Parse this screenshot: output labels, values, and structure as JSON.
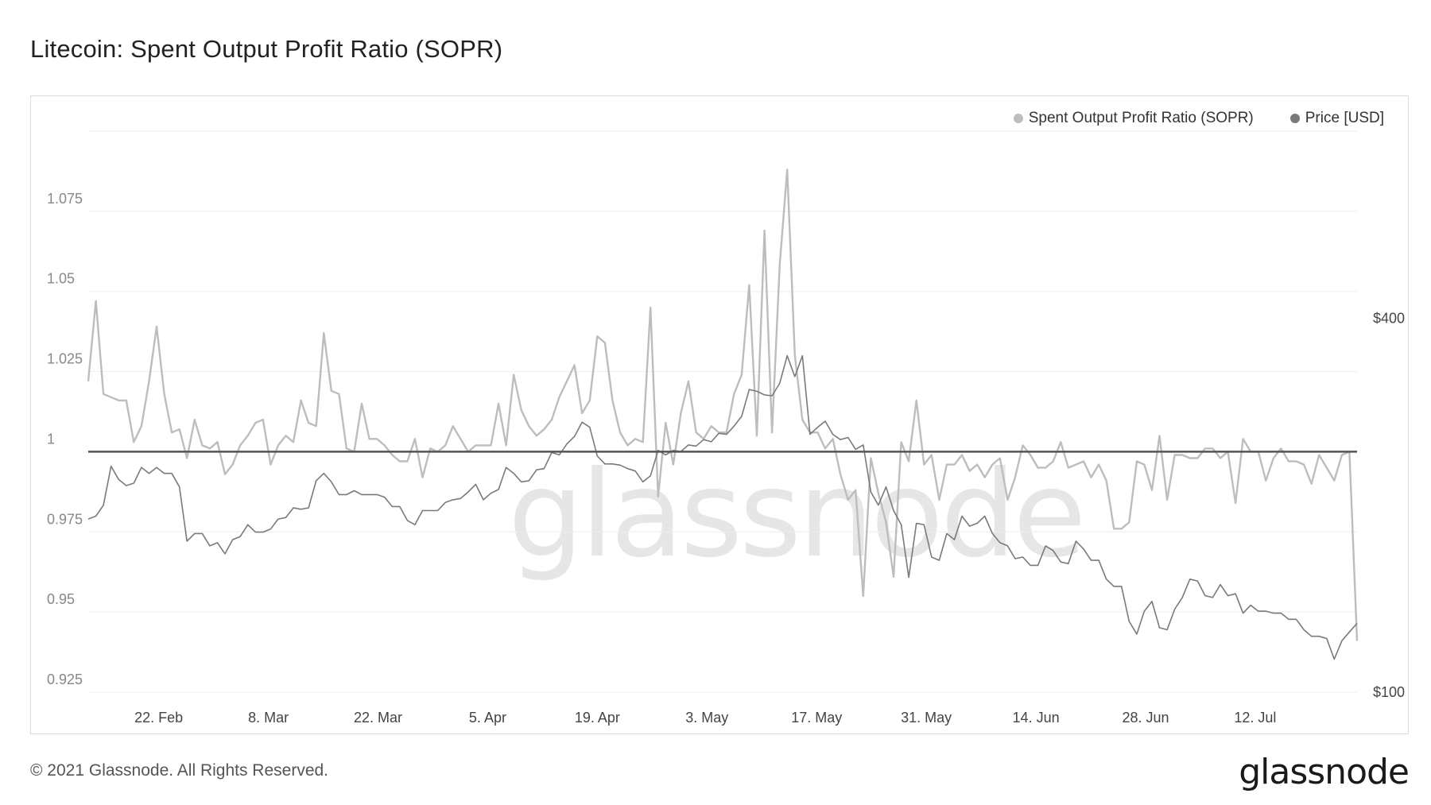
{
  "title": "Litecoin: Spent Output Profit Ratio (SOPR)",
  "footer": {
    "copyright": "© 2021 Glassnode. All Rights Reserved.",
    "logo": "glassnode"
  },
  "watermark": "glassnode",
  "colors": {
    "sopr": "#bdbdbd",
    "price": "#7a7a7a",
    "baseline": "#555555",
    "grid": "#eeeeee"
  },
  "chart_data": {
    "type": "line",
    "title": "Litecoin: Spent Output Profit Ratio (SOPR)",
    "x_start": "2021-02-13",
    "x_end": "2021-07-25",
    "x_ticks": [
      "22. Feb",
      "8. Mar",
      "22. Mar",
      "5. Apr",
      "19. Apr",
      "3. May",
      "17. May",
      "31. May",
      "14. Jun",
      "28. Jun",
      "12. Jul"
    ],
    "y_left": {
      "ticks": [
        "0.925",
        "0.95",
        "0.975",
        "1",
        "1.025",
        "1.05",
        "1.075"
      ],
      "range": [
        0.925,
        1.1
      ]
    },
    "y_right": {
      "ticks": [
        "$100",
        "$400"
      ],
      "scale": "log",
      "range": [
        100,
        800
      ]
    },
    "baseline": 1,
    "legend": {
      "position": "top-right"
    },
    "grid": true,
    "series": [
      {
        "name": "Spent Output Profit Ratio (SOPR)",
        "axis": "left",
        "values": [
          1.022,
          1.047,
          1.018,
          1.017,
          1.016,
          1.016,
          1.003,
          1.008,
          1.022,
          1.039,
          1.018,
          1.006,
          1.007,
          0.998,
          1.01,
          1.002,
          1.001,
          1.003,
          0.993,
          0.996,
          1.002,
          1.005,
          1.009,
          1.01,
          0.996,
          1.002,
          1.005,
          1.003,
          1.016,
          1.009,
          1.008,
          1.037,
          1.019,
          1.018,
          1.001,
          1.0,
          1.015,
          1.004,
          1.004,
          1.002,
          0.999,
          0.997,
          0.997,
          1.004,
          0.992,
          1.001,
          1.0,
          1.002,
          1.008,
          1.004,
          1.0,
          1.002,
          1.002,
          1.002,
          1.015,
          1.002,
          1.024,
          1.013,
          1.008,
          1.005,
          1.007,
          1.01,
          1.017,
          1.022,
          1.027,
          1.012,
          1.016,
          1.036,
          1.034,
          1.016,
          1.006,
          1.002,
          1.004,
          1.003,
          1.045,
          0.986,
          1.009,
          0.996,
          1.012,
          1.022,
          1.006,
          1.004,
          1.008,
          1.006,
          1.006,
          1.018,
          1.024,
          1.052,
          1.005,
          1.069,
          1.006,
          1.058,
          1.088,
          1.03,
          1.01,
          1.006,
          1.006,
          1.001,
          1.004,
          0.993,
          0.985,
          0.988,
          0.955,
          0.998,
          0.987,
          0.978,
          0.961,
          1.003,
          0.997,
          1.016,
          0.996,
          0.999,
          0.985,
          0.996,
          0.996,
          0.999,
          0.994,
          0.996,
          0.992,
          0.996,
          0.998,
          0.985,
          0.992,
          1.002,
          0.999,
          0.995,
          0.995,
          0.997,
          1.003,
          0.995,
          0.996,
          0.997,
          0.992,
          0.996,
          0.991,
          0.976,
          0.976,
          0.978,
          0.997,
          0.996,
          0.988,
          1.005,
          0.985,
          0.999,
          0.999,
          0.998,
          0.998,
          1.001,
          1.001,
          0.998,
          1.0,
          0.984,
          1.004,
          1.0,
          1.0,
          0.991,
          0.998,
          1.001,
          0.997,
          0.997,
          0.996,
          0.99,
          0.999,
          0.995,
          0.991,
          0.999,
          1.0,
          0.941
        ]
      },
      {
        "name": "Price [USD]",
        "axis": "right",
        "values": [
          190,
          192,
          200,
          231,
          220,
          215,
          217,
          230,
          225,
          230,
          225,
          225,
          214,
          175,
          180,
          180,
          172,
          174,
          167,
          176,
          178,
          186,
          181,
          181,
          183,
          190,
          191,
          198,
          197,
          198,
          219,
          225,
          218,
          208,
          208,
          211,
          208,
          208,
          208,
          206,
          199,
          199,
          189,
          186,
          196,
          196,
          196,
          202,
          204,
          205,
          210,
          216,
          204,
          209,
          212,
          230,
          225,
          218,
          219,
          228,
          229,
          243,
          241,
          251,
          258,
          272,
          267,
          240,
          233,
          233,
          232,
          229,
          227,
          218,
          223,
          245,
          241,
          245,
          244,
          250,
          249,
          255,
          253,
          261,
          260,
          268,
          278,
          307,
          305,
          301,
          300,
          314,
          348,
          322,
          348,
          260,
          267,
          273,
          260,
          255,
          257,
          246,
          250,
          210,
          200,
          214,
          196,
          186,
          153,
          187,
          186,
          165,
          163,
          180,
          176,
          192,
          185,
          187,
          192,
          180,
          174,
          172,
          164,
          165,
          160,
          160,
          172,
          169,
          162,
          161,
          175,
          170,
          163,
          163,
          152,
          148,
          148,
          130,
          124,
          135,
          140,
          127,
          126,
          136,
          142,
          152,
          151,
          143,
          142,
          149,
          143,
          144,
          134,
          138,
          135,
          135,
          134,
          134,
          131,
          131,
          126,
          123,
          123,
          122,
          113,
          121,
          125,
          129
        ]
      }
    ]
  }
}
